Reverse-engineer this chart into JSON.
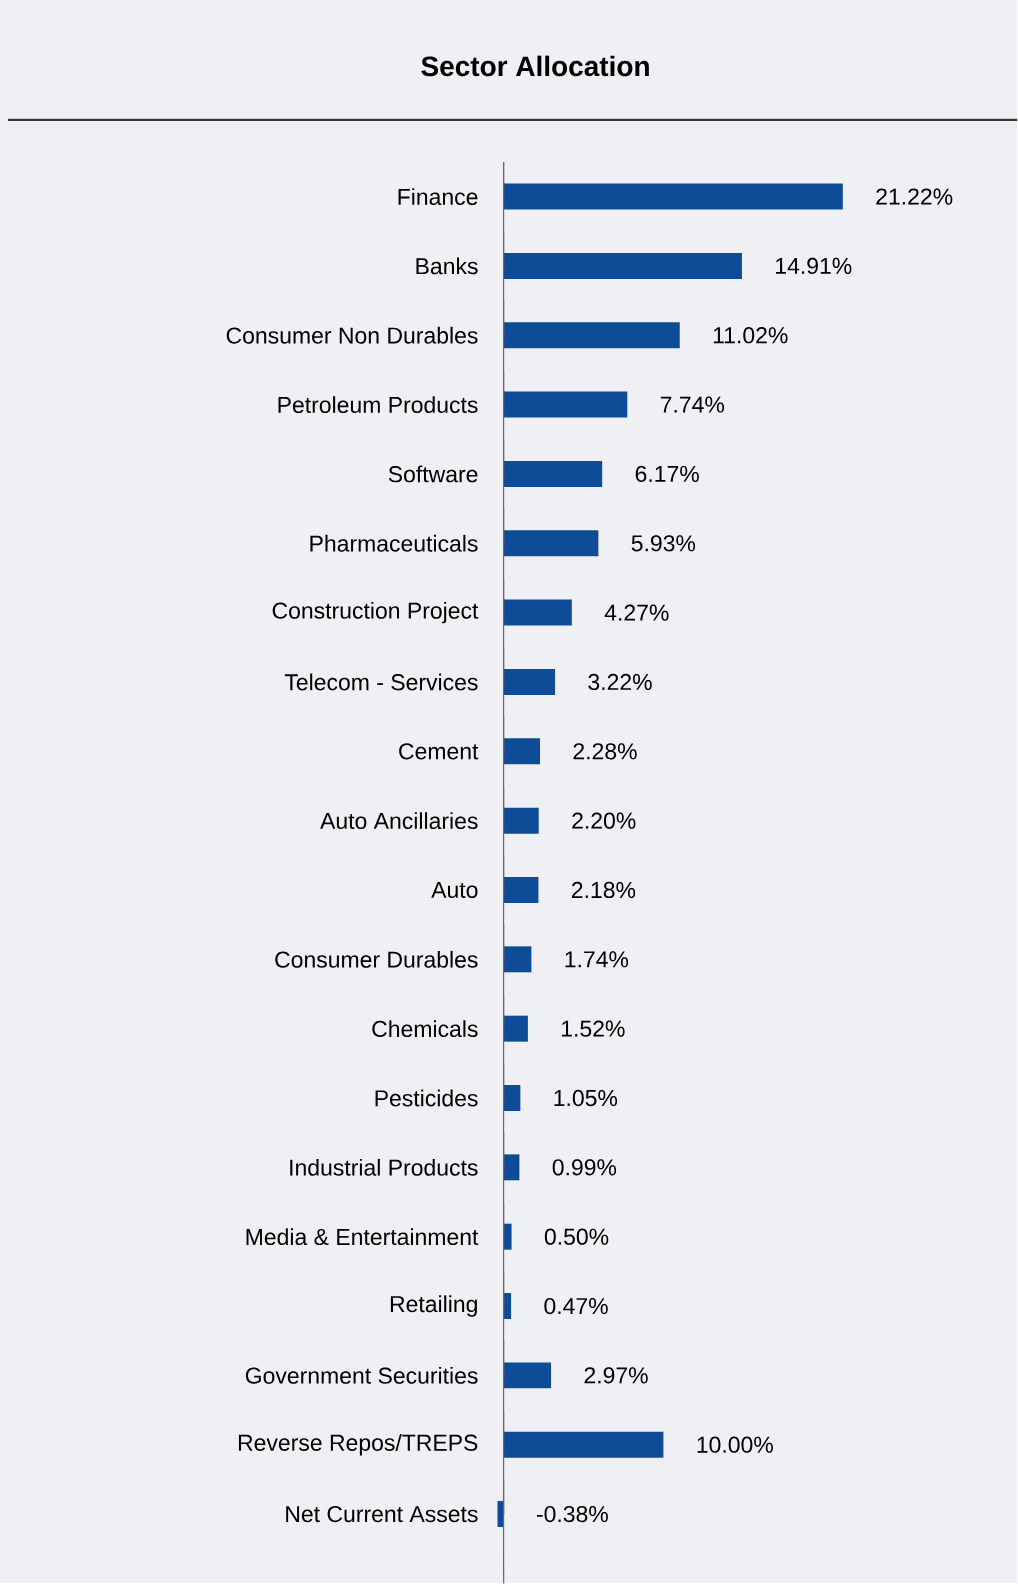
{
  "chart_data": {
    "type": "bar",
    "orientation": "horizontal",
    "title": "Sector Allocation",
    "categories": [
      "Finance",
      "Banks",
      "Consumer Non Durables",
      "Petroleum Products",
      "Software",
      "Pharmaceuticals",
      "Construction Project",
      "Telecom - Services",
      "Cement",
      "Auto Ancillaries",
      "Auto",
      "Consumer Durables",
      "Chemicals",
      "Pesticides",
      "Industrial Products",
      "Media & Entertainment",
      "Retailing",
      "Government Securities",
      "Reverse Repos/TREPS",
      "Net Current Assets"
    ],
    "values": [
      21.22,
      14.91,
      11.02,
      7.74,
      6.17,
      5.93,
      4.27,
      3.22,
      2.28,
      2.2,
      2.18,
      1.74,
      1.52,
      1.05,
      0.99,
      0.5,
      0.47,
      2.97,
      10.0,
      -0.38
    ],
    "value_labels": [
      "21.22%",
      "14.91%",
      "11.02%",
      "7.74%",
      "6.17%",
      "5.93%",
      "4.27%",
      "3.22%",
      "2.28%",
      "2.20%",
      "2.18%",
      "1.74%",
      "1.52%",
      "1.05%",
      "0.99%",
      "0.50%",
      "0.47%",
      "2.97%",
      "10.00%",
      "-0.38%"
    ],
    "color": "#0f4c97"
  }
}
